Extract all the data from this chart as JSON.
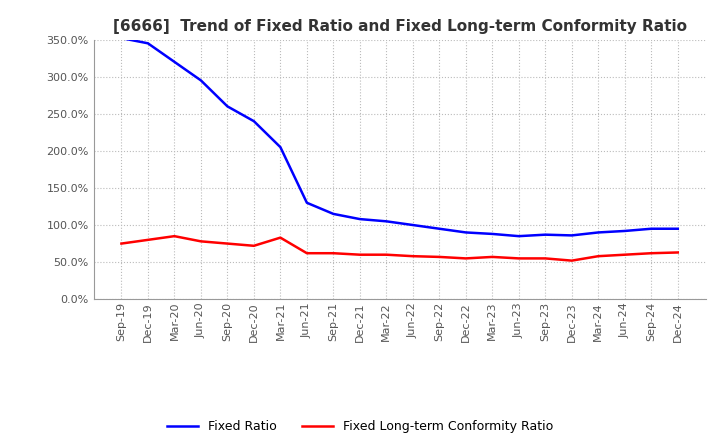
{
  "title": "[6666]  Trend of Fixed Ratio and Fixed Long-term Conformity Ratio",
  "x_labels": [
    "Sep-19",
    "Dec-19",
    "Mar-20",
    "Jun-20",
    "Sep-20",
    "Dec-20",
    "Mar-21",
    "Jun-21",
    "Sep-21",
    "Dec-21",
    "Mar-22",
    "Jun-22",
    "Sep-22",
    "Dec-22",
    "Mar-23",
    "Jun-23",
    "Sep-23",
    "Dec-23",
    "Mar-24",
    "Jun-24",
    "Sep-24",
    "Dec-24"
  ],
  "fixed_ratio": [
    352,
    345,
    320,
    295,
    260,
    240,
    205,
    130,
    115,
    108,
    105,
    100,
    95,
    90,
    88,
    85,
    87,
    86,
    90,
    92,
    95,
    95
  ],
  "fixed_lt_ratio": [
    75,
    80,
    85,
    78,
    75,
    72,
    83,
    62,
    62,
    60,
    60,
    58,
    57,
    55,
    57,
    55,
    55,
    52,
    58,
    60,
    62,
    63
  ],
  "fixed_ratio_color": "#0000ff",
  "fixed_lt_ratio_color": "#ff0000",
  "ylim": [
    0,
    350
  ],
  "yticks": [
    0,
    50,
    100,
    150,
    200,
    250,
    300,
    350
  ],
  "background_color": "#ffffff",
  "grid_color": "#bbbbbb",
  "title_fontsize": 11,
  "tick_fontsize": 8,
  "legend_labels": [
    "Fixed Ratio",
    "Fixed Long-term Conformity Ratio"
  ]
}
